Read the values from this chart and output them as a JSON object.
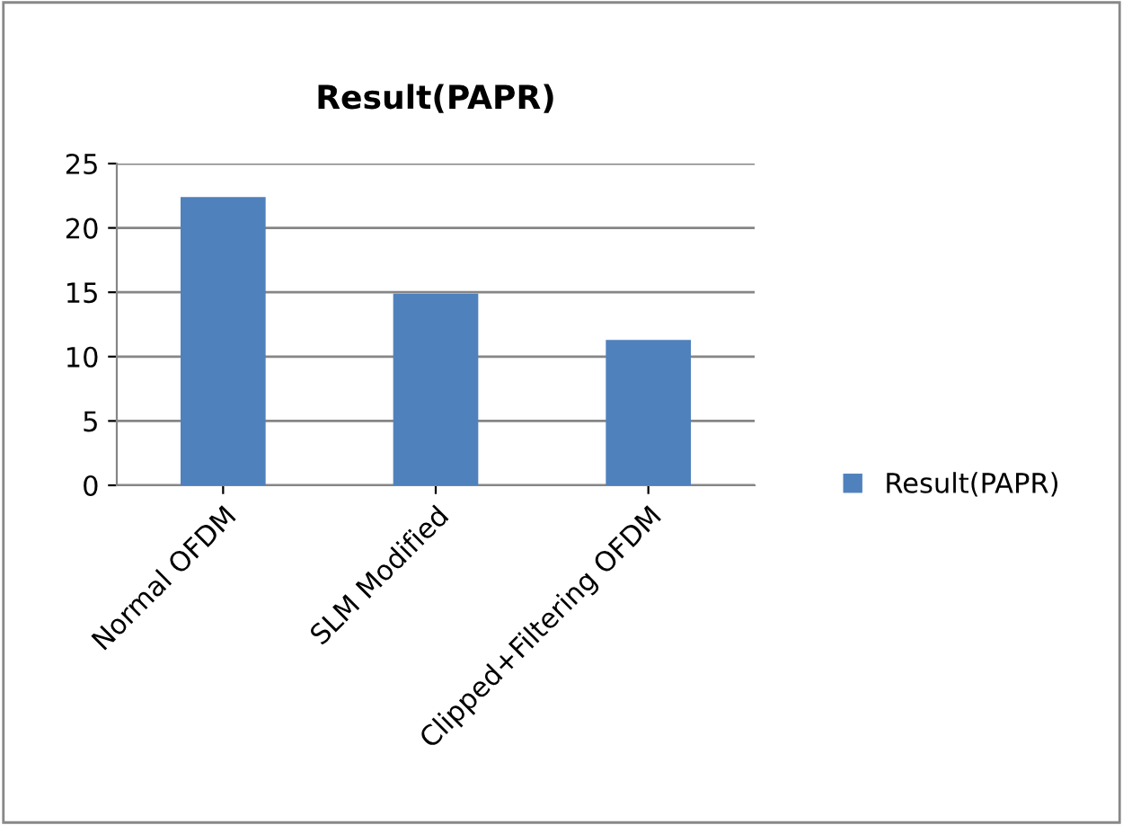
{
  "chart_data": {
    "type": "bar",
    "title": "Result(PAPR)",
    "categories": [
      "Normal OFDM",
      "SLM Modified",
      "Clipped+Filtering OFDM"
    ],
    "series": [
      {
        "name": "Result(PAPR)",
        "color": "#4f81bd",
        "values": [
          22.4,
          14.9,
          11.3
        ]
      }
    ],
    "ylim": [
      0,
      25
    ],
    "yticks": [
      0,
      5,
      10,
      15,
      20,
      25
    ],
    "grid": "y",
    "legend": "right"
  }
}
